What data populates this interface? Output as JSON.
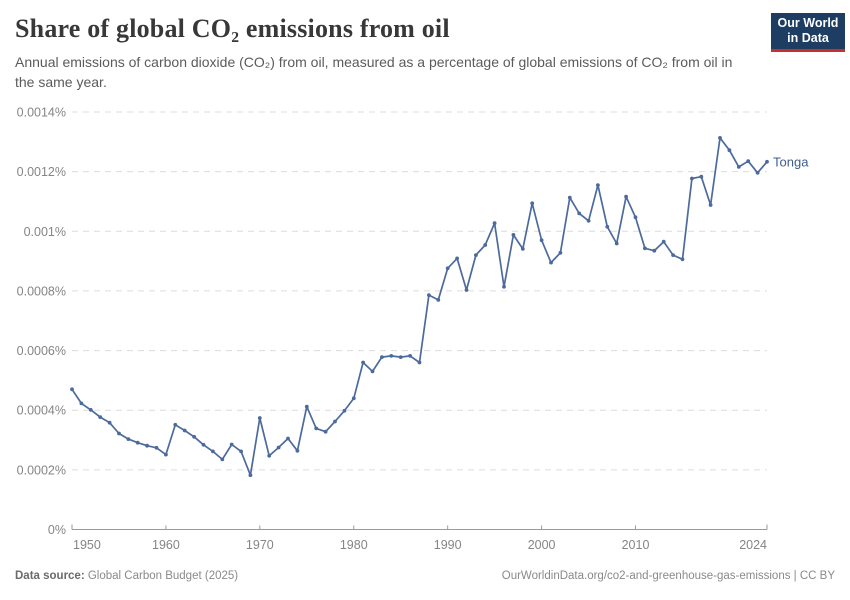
{
  "header": {
    "title": "Share of global CO₂ emissions from oil",
    "subtitle": "Annual emissions of carbon dioxide (CO₂) from oil, measured as a percentage of global emissions of CO₂ from oil in the same year.",
    "logo": {
      "line1": "Our World",
      "line2": "in Data"
    }
  },
  "chart_data": {
    "type": "line",
    "title": "Share of global CO₂ emissions from oil",
    "entity": "Tonga",
    "unit": "%",
    "grid": "horizontal-dashed",
    "legend_position": "end-of-line-label",
    "x": [
      1950,
      1951,
      1952,
      1953,
      1954,
      1955,
      1956,
      1957,
      1958,
      1959,
      1960,
      1961,
      1962,
      1963,
      1964,
      1965,
      1966,
      1967,
      1968,
      1969,
      1970,
      1971,
      1972,
      1973,
      1974,
      1975,
      1976,
      1977,
      1978,
      1979,
      1980,
      1981,
      1982,
      1983,
      1984,
      1985,
      1986,
      1987,
      1988,
      1989,
      1990,
      1991,
      1992,
      1993,
      1994,
      1995,
      1996,
      1997,
      1998,
      1999,
      2000,
      2001,
      2002,
      2003,
      2004,
      2005,
      2006,
      2007,
      2008,
      2009,
      2010,
      2011,
      2012,
      2013,
      2014,
      2015,
      2016,
      2017,
      2018,
      2019,
      2020,
      2021,
      2022,
      2023,
      2024
    ],
    "series": [
      {
        "name": "Tonga",
        "values": [
          0.00047,
          0.000423,
          0.000401,
          0.000377,
          0.000358,
          0.000322,
          0.000303,
          0.000291,
          0.000281,
          0.000274,
          0.000251,
          0.000351,
          0.000332,
          0.000311,
          0.000284,
          0.000262,
          0.000235,
          0.000285,
          0.000262,
          0.000182,
          0.000374,
          0.000247,
          0.000275,
          0.000305,
          0.000264,
          0.000412,
          0.000339,
          0.000328,
          0.000362,
          0.000398,
          0.00044,
          0.00056,
          0.00053,
          0.000578,
          0.000582,
          0.000578,
          0.000582,
          0.00056,
          0.000786,
          0.00077,
          0.000876,
          0.000909,
          0.000803,
          0.00092,
          0.000954,
          0.001027,
          0.000814,
          0.000988,
          0.000941,
          0.001094,
          0.00097,
          0.000895,
          0.000928,
          0.001113,
          0.00106,
          0.001035,
          0.001155,
          0.001015,
          0.000959,
          0.001116,
          0.001047,
          0.000943,
          0.000935,
          0.000965,
          0.00092,
          0.000906,
          0.001177,
          0.001183,
          0.001088,
          0.001313,
          0.001272,
          0.001216,
          0.001235,
          0.001196,
          0.001233
        ]
      }
    ],
    "ylim": [
      0,
      0.0014
    ],
    "xlim": [
      1950,
      2024
    ],
    "ytick_values": [
      0,
      0.0002,
      0.0004,
      0.0006,
      0.0008,
      0.001,
      0.0012,
      0.0014
    ],
    "ytick_labels": [
      "0%",
      "0.0002%",
      "0.0004%",
      "0.0006%",
      "0.0008%",
      "0.001%",
      "0.0012%",
      "0.0014%"
    ],
    "xtick_values": [
      1950,
      1960,
      1970,
      1980,
      1990,
      2000,
      2010,
      2024
    ],
    "xtick_labels": [
      "1950",
      "1960",
      "1970",
      "1980",
      "1990",
      "2000",
      "2010",
      "2024"
    ]
  },
  "footer": {
    "source_label": "Data source:",
    "source_value": " Global Carbon Budget (2025)",
    "credit": "OurWorldinData.org/co2-and-greenhouse-gas-emissions | CC BY"
  },
  "colors": {
    "line": "#4C6A9C",
    "entity_label": "#3d5c8f",
    "gridline": "#dcdcdc",
    "axis": "#9a9a9a",
    "tick_text": "#858585",
    "logo_bg": "#1d3d63",
    "logo_bar": "#c5312d"
  }
}
